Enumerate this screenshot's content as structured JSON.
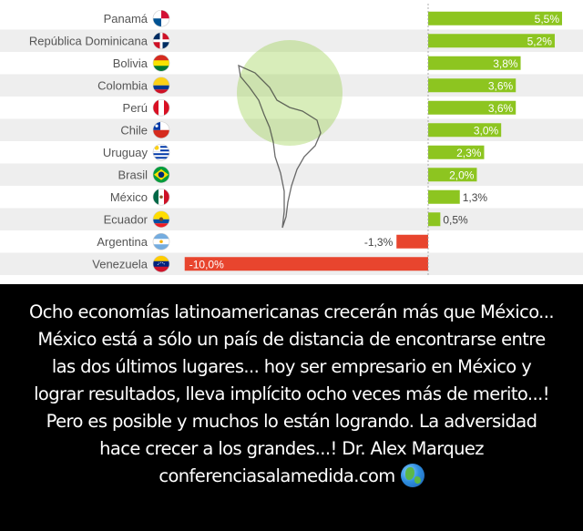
{
  "chart_data": {
    "type": "bar",
    "orientation": "horizontal",
    "categories": [
      "Panamá",
      "República Dominicana",
      "Bolivia",
      "Colombia",
      "Perú",
      "Chile",
      "Uruguay",
      "Brasil",
      "México",
      "Ecuador",
      "Argentina",
      "Venezuela"
    ],
    "values": [
      5.5,
      5.2,
      3.8,
      3.6,
      3.6,
      3.0,
      2.3,
      2.0,
      1.3,
      0.5,
      -1.3,
      -10.0
    ],
    "value_labels": [
      "5,5%",
      "5,2%",
      "3,8%",
      "3,6%",
      "3,6%",
      "3,0%",
      "2,3%",
      "2,0%",
      "1,3%",
      "0,5%",
      "-1,3%",
      "-10,0%"
    ],
    "title": "",
    "xlabel": "",
    "ylabel": "",
    "xlim": [
      -10.0,
      5.5
    ],
    "grid": false,
    "colors": {
      "positive": "#8dc520",
      "negative": "#e8452e",
      "row_alt": "#eeeeee",
      "label": "#555555"
    }
  },
  "flag_icons": [
    "panama-flag-icon",
    "dominican-republic-flag-icon",
    "bolivia-flag-icon",
    "colombia-flag-icon",
    "peru-flag-icon",
    "chile-flag-icon",
    "uruguay-flag-icon",
    "brazil-flag-icon",
    "mexico-flag-icon",
    "ecuador-flag-icon",
    "argentina-flag-icon",
    "venezuela-flag-icon"
  ],
  "caption": {
    "lines": [
      "Ocho economías latinoamericanas crecerán más que México...",
      "México está a sólo un país de distancia de encontrarse entre",
      "las dos últimos lugares... hoy ser empresario en México y",
      "lograr resultados, lleva implícito ocho veces más de merito...!",
      "Pero es posible y muchos lo están logrando. La adversidad",
      "hace crecer a los grandes...! Dr. Alex Marquez"
    ],
    "website": "conferenciasalamedida.com",
    "website_icon": "globe-icon"
  }
}
